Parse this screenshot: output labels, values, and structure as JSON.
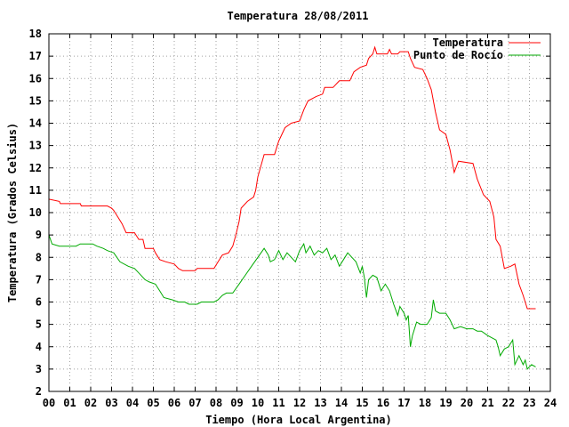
{
  "chart_data": {
    "type": "line",
    "title": "Temperatura 28/08/2011",
    "xlabel": "Tiempo (Hora Local Argentina)",
    "ylabel": "Temperatura (Grados Celsius)",
    "xlim": [
      0,
      24
    ],
    "ylim": [
      2,
      18
    ],
    "x_ticks": [
      {
        "v": 0,
        "label": "00"
      },
      {
        "v": 1,
        "label": "01"
      },
      {
        "v": 2,
        "label": "02"
      },
      {
        "v": 3,
        "label": "03"
      },
      {
        "v": 4,
        "label": "04"
      },
      {
        "v": 5,
        "label": "05"
      },
      {
        "v": 6,
        "label": "06"
      },
      {
        "v": 7,
        "label": "07"
      },
      {
        "v": 8,
        "label": "08"
      },
      {
        "v": 9,
        "label": "09"
      },
      {
        "v": 10,
        "label": "10"
      },
      {
        "v": 11,
        "label": "11"
      },
      {
        "v": 12,
        "label": "12"
      },
      {
        "v": 13,
        "label": "13"
      },
      {
        "v": 14,
        "label": "14"
      },
      {
        "v": 15,
        "label": "15"
      },
      {
        "v": 16,
        "label": "16"
      },
      {
        "v": 17,
        "label": "17"
      },
      {
        "v": 18,
        "label": "18"
      },
      {
        "v": 19,
        "label": "19"
      },
      {
        "v": 20,
        "label": "20"
      },
      {
        "v": 21,
        "label": "21"
      },
      {
        "v": 22,
        "label": "22"
      },
      {
        "v": 23,
        "label": "23"
      },
      {
        "v": 24,
        "label": "24"
      }
    ],
    "y_ticks": [
      {
        "v": 2,
        "label": "2"
      },
      {
        "v": 3,
        "label": "3"
      },
      {
        "v": 4,
        "label": "4"
      },
      {
        "v": 5,
        "label": "5"
      },
      {
        "v": 6,
        "label": "6"
      },
      {
        "v": 7,
        "label": "7"
      },
      {
        "v": 8,
        "label": "8"
      },
      {
        "v": 9,
        "label": "9"
      },
      {
        "v": 10,
        "label": "10"
      },
      {
        "v": 11,
        "label": "11"
      },
      {
        "v": 12,
        "label": "12"
      },
      {
        "v": 13,
        "label": "13"
      },
      {
        "v": 14,
        "label": "14"
      },
      {
        "v": 15,
        "label": "15"
      },
      {
        "v": 16,
        "label": "16"
      },
      {
        "v": 17,
        "label": "17"
      },
      {
        "v": 18,
        "label": "18"
      }
    ],
    "grid": true,
    "legend_position": "top-right",
    "series": [
      {
        "name": "Temperatura",
        "color": "#ff0000",
        "points": [
          [
            0,
            10.6
          ],
          [
            0.5,
            10.5
          ],
          [
            0.55,
            10.4
          ],
          [
            1.5,
            10.4
          ],
          [
            1.55,
            10.3
          ],
          [
            2.8,
            10.3
          ],
          [
            3.0,
            10.2
          ],
          [
            3.1,
            10.1
          ],
          [
            3.3,
            9.8
          ],
          [
            3.5,
            9.5
          ],
          [
            3.7,
            9.1
          ],
          [
            4.1,
            9.1
          ],
          [
            4.3,
            8.8
          ],
          [
            4.5,
            8.8
          ],
          [
            4.6,
            8.4
          ],
          [
            5.0,
            8.4
          ],
          [
            5.1,
            8.2
          ],
          [
            5.3,
            7.9
          ],
          [
            5.6,
            7.8
          ],
          [
            6.0,
            7.7
          ],
          [
            6.2,
            7.5
          ],
          [
            6.4,
            7.4
          ],
          [
            7.0,
            7.4
          ],
          [
            7.1,
            7.5
          ],
          [
            7.9,
            7.5
          ],
          [
            8.1,
            7.8
          ],
          [
            8.3,
            8.1
          ],
          [
            8.6,
            8.2
          ],
          [
            8.8,
            8.5
          ],
          [
            8.95,
            9.0
          ],
          [
            9.1,
            9.6
          ],
          [
            9.2,
            10.2
          ],
          [
            9.5,
            10.5
          ],
          [
            9.8,
            10.7
          ],
          [
            9.9,
            11.0
          ],
          [
            10.0,
            11.6
          ],
          [
            10.3,
            12.6
          ],
          [
            10.8,
            12.6
          ],
          [
            11.0,
            13.2
          ],
          [
            11.3,
            13.8
          ],
          [
            11.6,
            14.0
          ],
          [
            12.0,
            14.1
          ],
          [
            12.2,
            14.6
          ],
          [
            12.4,
            15.0
          ],
          [
            12.8,
            15.2
          ],
          [
            13.1,
            15.3
          ],
          [
            13.2,
            15.6
          ],
          [
            13.6,
            15.6
          ],
          [
            13.9,
            15.9
          ],
          [
            14.4,
            15.9
          ],
          [
            14.6,
            16.3
          ],
          [
            14.9,
            16.5
          ],
          [
            15.2,
            16.6
          ],
          [
            15.3,
            16.9
          ],
          [
            15.5,
            17.1
          ],
          [
            15.6,
            17.4
          ],
          [
            15.7,
            17.1
          ],
          [
            16.2,
            17.1
          ],
          [
            16.3,
            17.3
          ],
          [
            16.4,
            17.1
          ],
          [
            16.7,
            17.1
          ],
          [
            16.8,
            17.2
          ],
          [
            17.2,
            17.2
          ],
          [
            17.3,
            16.9
          ],
          [
            17.5,
            16.5
          ],
          [
            17.9,
            16.4
          ],
          [
            18.1,
            16.0
          ],
          [
            18.3,
            15.5
          ],
          [
            18.5,
            14.5
          ],
          [
            18.7,
            13.7
          ],
          [
            19.0,
            13.5
          ],
          [
            19.2,
            12.8
          ],
          [
            19.4,
            11.8
          ],
          [
            19.6,
            12.3
          ],
          [
            20.3,
            12.2
          ],
          [
            20.5,
            11.5
          ],
          [
            20.8,
            10.8
          ],
          [
            21.1,
            10.5
          ],
          [
            21.3,
            9.8
          ],
          [
            21.4,
            8.8
          ],
          [
            21.6,
            8.5
          ],
          [
            21.8,
            7.5
          ],
          [
            22.1,
            7.6
          ],
          [
            22.3,
            7.7
          ],
          [
            22.5,
            6.8
          ],
          [
            22.7,
            6.3
          ],
          [
            22.9,
            5.7
          ],
          [
            23.1,
            5.7
          ],
          [
            23.3,
            5.7
          ]
        ]
      },
      {
        "name": "Punto de Rocío",
        "color": "#00aa00",
        "points": [
          [
            0,
            9.0
          ],
          [
            0.15,
            8.6
          ],
          [
            0.5,
            8.5
          ],
          [
            1.3,
            8.5
          ],
          [
            1.5,
            8.6
          ],
          [
            2.1,
            8.6
          ],
          [
            2.3,
            8.5
          ],
          [
            2.6,
            8.4
          ],
          [
            2.8,
            8.3
          ],
          [
            3.1,
            8.2
          ],
          [
            3.4,
            7.8
          ],
          [
            3.8,
            7.6
          ],
          [
            4.1,
            7.5
          ],
          [
            4.3,
            7.3
          ],
          [
            4.6,
            7.0
          ],
          [
            4.8,
            6.9
          ],
          [
            5.1,
            6.8
          ],
          [
            5.3,
            6.5
          ],
          [
            5.5,
            6.2
          ],
          [
            5.9,
            6.1
          ],
          [
            6.2,
            6.0
          ],
          [
            6.5,
            6.0
          ],
          [
            6.7,
            5.9
          ],
          [
            7.1,
            5.9
          ],
          [
            7.3,
            6.0
          ],
          [
            7.9,
            6.0
          ],
          [
            8.1,
            6.1
          ],
          [
            8.3,
            6.3
          ],
          [
            8.5,
            6.4
          ],
          [
            8.8,
            6.4
          ],
          [
            9.1,
            6.8
          ],
          [
            9.4,
            7.2
          ],
          [
            9.7,
            7.6
          ],
          [
            10.0,
            8.0
          ],
          [
            10.3,
            8.4
          ],
          [
            10.5,
            8.1
          ],
          [
            10.6,
            7.8
          ],
          [
            10.8,
            7.9
          ],
          [
            11.0,
            8.3
          ],
          [
            11.2,
            7.9
          ],
          [
            11.4,
            8.2
          ],
          [
            11.6,
            8.0
          ],
          [
            11.8,
            7.8
          ],
          [
            12.0,
            8.3
          ],
          [
            12.2,
            8.6
          ],
          [
            12.3,
            8.2
          ],
          [
            12.5,
            8.5
          ],
          [
            12.7,
            8.1
          ],
          [
            12.9,
            8.3
          ],
          [
            13.1,
            8.2
          ],
          [
            13.3,
            8.4
          ],
          [
            13.5,
            7.9
          ],
          [
            13.7,
            8.1
          ],
          [
            13.9,
            7.6
          ],
          [
            14.1,
            7.9
          ],
          [
            14.3,
            8.2
          ],
          [
            14.5,
            8.0
          ],
          [
            14.7,
            7.8
          ],
          [
            14.9,
            7.3
          ],
          [
            15.0,
            7.6
          ],
          [
            15.1,
            7.1
          ],
          [
            15.2,
            6.2
          ],
          [
            15.3,
            7.0
          ],
          [
            15.5,
            7.2
          ],
          [
            15.7,
            7.1
          ],
          [
            15.9,
            6.5
          ],
          [
            16.1,
            6.8
          ],
          [
            16.3,
            6.5
          ],
          [
            16.5,
            5.9
          ],
          [
            16.7,
            5.4
          ],
          [
            16.8,
            5.8
          ],
          [
            17.0,
            5.5
          ],
          [
            17.1,
            5.2
          ],
          [
            17.2,
            5.4
          ],
          [
            17.3,
            4.0
          ],
          [
            17.4,
            4.5
          ],
          [
            17.6,
            5.1
          ],
          [
            17.8,
            5.0
          ],
          [
            18.1,
            5.0
          ],
          [
            18.3,
            5.3
          ],
          [
            18.4,
            6.1
          ],
          [
            18.5,
            5.6
          ],
          [
            18.7,
            5.5
          ],
          [
            19.0,
            5.5
          ],
          [
            19.2,
            5.2
          ],
          [
            19.4,
            4.8
          ],
          [
            19.7,
            4.9
          ],
          [
            20.0,
            4.8
          ],
          [
            20.3,
            4.8
          ],
          [
            20.5,
            4.7
          ],
          [
            20.7,
            4.7
          ],
          [
            21.0,
            4.5
          ],
          [
            21.2,
            4.4
          ],
          [
            21.4,
            4.3
          ],
          [
            21.5,
            4.0
          ],
          [
            21.6,
            3.6
          ],
          [
            21.8,
            3.9
          ],
          [
            22.0,
            4.0
          ],
          [
            22.2,
            4.3
          ],
          [
            22.3,
            3.2
          ],
          [
            22.5,
            3.6
          ],
          [
            22.7,
            3.2
          ],
          [
            22.8,
            3.4
          ],
          [
            22.9,
            3.0
          ],
          [
            23.1,
            3.2
          ],
          [
            23.3,
            3.1
          ]
        ]
      }
    ]
  }
}
